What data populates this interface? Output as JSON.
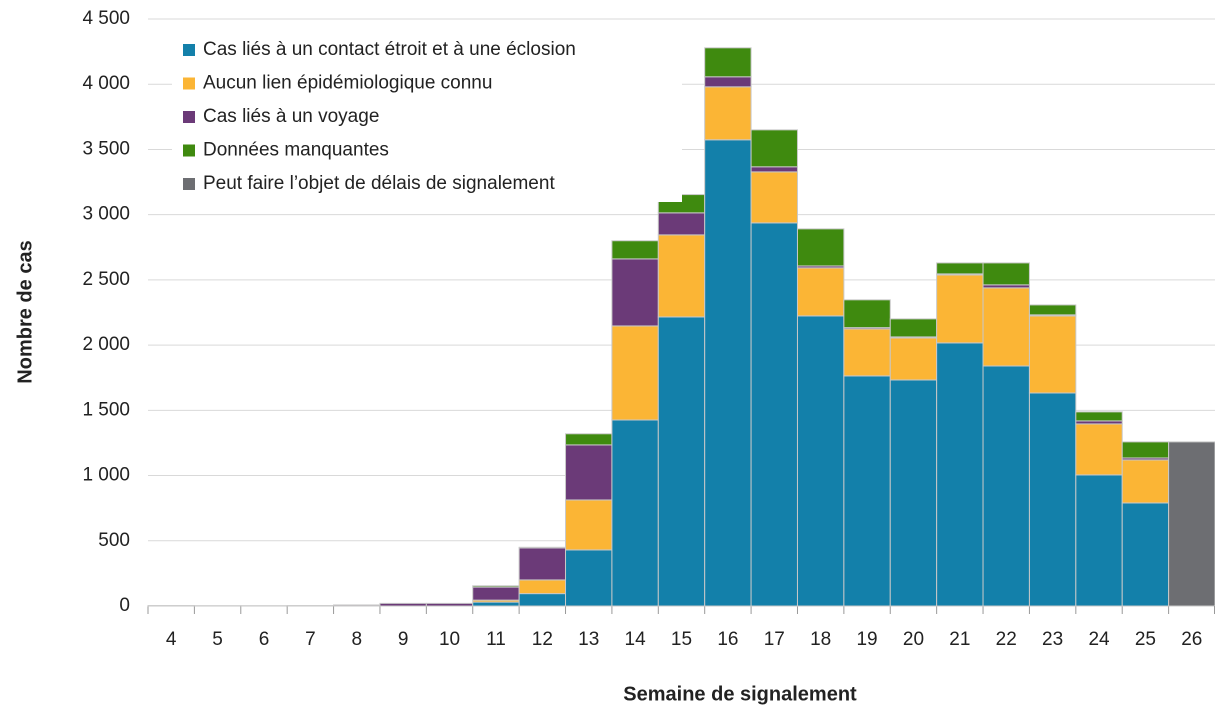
{
  "chart_data": {
    "type": "stacked_bar",
    "xlabel": "Semaine de signalement",
    "ylabel": "Nombre de cas",
    "categories": [
      4,
      5,
      6,
      7,
      8,
      9,
      10,
      11,
      12,
      13,
      14,
      15,
      16,
      17,
      18,
      19,
      20,
      21,
      22,
      23,
      24,
      25,
      26
    ],
    "series": [
      {
        "name": "Cas liés à un contact étroit et à une éclosion",
        "color": "#1380aa",
        "values": [
          0,
          0,
          0,
          0,
          0,
          0,
          0,
          30,
          95,
          430,
          1426,
          2216,
          3574,
          2937,
          2224,
          1764,
          1733,
          2017,
          1840,
          1633,
          1005,
          790,
          0
        ]
      },
      {
        "name": "Aucun lien épidémiologique connu",
        "color": "#fbb535",
        "values": [
          0,
          0,
          0,
          0,
          0,
          0,
          0,
          15,
          105,
          383,
          721,
          629,
          406,
          391,
          368,
          360,
          322,
          521,
          599,
          591,
          391,
          330,
          0
        ]
      },
      {
        "name": "Cas liés à un voyage",
        "color": "#6b3a78",
        "values": [
          3,
          2,
          2,
          3,
          8,
          20,
          20,
          100,
          245,
          422,
          514,
          169,
          77,
          39,
          15,
          10,
          8,
          8,
          23,
          8,
          23,
          15,
          0
        ]
      },
      {
        "name": "Données manquantes",
        "color": "#3f8a0f",
        "values": [
          0,
          0,
          0,
          0,
          0,
          0,
          0,
          10,
          5,
          85,
          139,
          140,
          222,
          283,
          284,
          213,
          138,
          84,
          168,
          76,
          69,
          123,
          0
        ]
      },
      {
        "name": "Peut faire l’objet de délais de signalement",
        "color": "#6d6e72",
        "values": [
          0,
          0,
          0,
          0,
          0,
          0,
          0,
          0,
          0,
          0,
          0,
          0,
          0,
          0,
          0,
          0,
          0,
          0,
          0,
          0,
          0,
          0,
          1258
        ]
      }
    ],
    "ylim": [
      0,
      4500
    ],
    "yticks": [
      0,
      500,
      {
        "value": 1000,
        "label": "1 000"
      },
      {
        "value": 1500,
        "label": "1 500"
      },
      {
        "value": 2000,
        "label": "2 000"
      },
      {
        "value": 2500,
        "label": "2 500"
      },
      {
        "value": 3000,
        "label": "3 000"
      },
      {
        "value": 3500,
        "label": "3 500"
      },
      {
        "value": 4000,
        "label": "4 000"
      },
      {
        "value": 4500,
        "label": "4 500"
      }
    ],
    "grid": true,
    "legend": "upper left"
  }
}
